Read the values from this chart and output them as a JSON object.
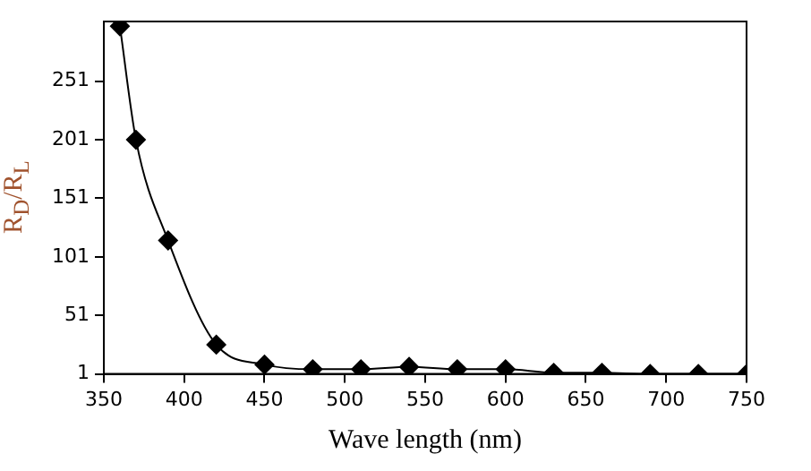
{
  "chart_data": {
    "type": "line",
    "xlabel": "Wave length (nm)",
    "ylabel": "R$_{D}$/R$_{L}$",
    "x": [
      360,
      370,
      390,
      420,
      450,
      480,
      510,
      540,
      570,
      600,
      630,
      660,
      690,
      720,
      750
    ],
    "series": [
      {
        "color": "#000000",
        "values": [
          298,
          201,
          115,
          26,
          9,
          5,
          5,
          7,
          5,
          5,
          2,
          2,
          1,
          1,
          1
        ]
      }
    ],
    "xlim": [
      350,
      750
    ],
    "xticks": [
      350,
      400,
      450,
      500,
      550,
      600,
      650,
      700,
      750
    ],
    "ylim": [
      1,
      302
    ],
    "yticks": [
      1,
      51,
      101,
      151,
      201,
      251
    ],
    "grid": false,
    "legend": false,
    "marker": "diamond",
    "line_style": "solid"
  }
}
